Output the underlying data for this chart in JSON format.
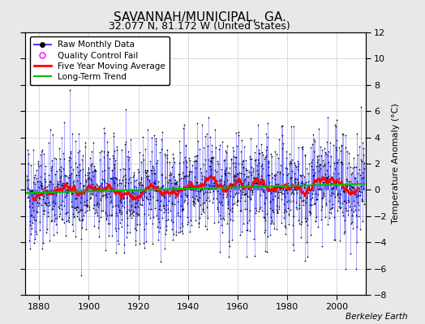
{
  "title": "SAVANNAH/MUNICIPAL,  GA.",
  "subtitle": "32.077 N, 81.172 W (United States)",
  "ylabel": "Temperature Anomaly (°C)",
  "attribution": "Berkeley Earth",
  "year_start": 1875,
  "year_end": 2011,
  "ylim": [
    -8,
    12
  ],
  "yticks": [
    -8,
    -6,
    -4,
    -2,
    0,
    2,
    4,
    6,
    8,
    10,
    12
  ],
  "xticks": [
    1880,
    1900,
    1920,
    1940,
    1960,
    1980,
    2000
  ],
  "seed": 42,
  "raw_color": "#4444ff",
  "marker_color": "#000000",
  "qc_color": "#ff00ff",
  "moving_avg_color": "#ff0000",
  "trend_color": "#00bb00",
  "bg_color": "#e8e8e8",
  "plot_bg_color": "#ffffff",
  "moving_avg_window": 60,
  "title_fontsize": 11,
  "subtitle_fontsize": 9,
  "label_fontsize": 8,
  "tick_fontsize": 8,
  "legend_fontsize": 7.5
}
